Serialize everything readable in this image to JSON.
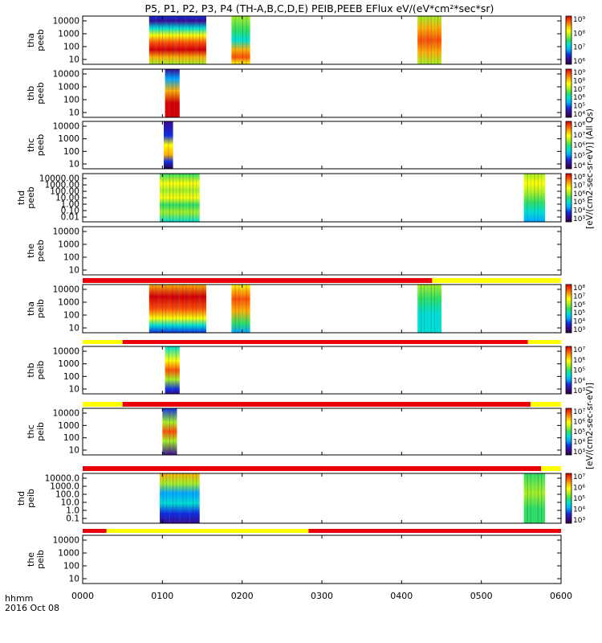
{
  "title": "P5, P1, P2, P3, P4 (TH-A,B,C,D,E) PEIB,PEEB EFlux eV/(eV*cm²*sec*sr)",
  "time_axis": {
    "label_line1": "hhmm",
    "label_line2": "2016 Oct 08",
    "ticks": [
      "0000",
      "0100",
      "0200",
      "0300",
      "0400",
      "0500",
      "0600"
    ],
    "range_minutes": [
      0,
      360
    ]
  },
  "colorbar_labels": {
    "electron": "[eV/(cm2-sec-sr-eV)] (All Qs)",
    "ion": "[eV/(cm2-sec-sr-eV)]"
  },
  "colors": {
    "status_red": "#e8000b",
    "status_yellow": "#ffff00",
    "spectrogram_scale": [
      "#2b0040",
      "#3a0a8f",
      "#1030e0",
      "#00a8ff",
      "#00e0d0",
      "#30e060",
      "#a8f020",
      "#ffff00",
      "#ffb000",
      "#ff5000",
      "#d80000"
    ]
  },
  "chart_data": {
    "type": "heatmap",
    "x_units": "minutes since 0000 UT",
    "panels": [
      {
        "label_line1": "tha",
        "label_line2": "peeb",
        "kind": "electron",
        "yticks": [
          "10",
          "100",
          "1000",
          "10000"
        ],
        "colorbar_ticks": [
          "10⁶",
          "10⁷",
          "10⁸",
          "10⁹"
        ],
        "blocks": [
          {
            "t0": 50,
            "t1": 93,
            "profile": "eA"
          },
          {
            "t0": 112,
            "t1": 126,
            "profile": "eB"
          },
          {
            "t0": 252,
            "t1": 270,
            "profile": "eC"
          }
        ]
      },
      {
        "label_line1": "thb",
        "label_line2": "peeb",
        "kind": "electron",
        "yticks": [
          "10",
          "100",
          "1000",
          "10000"
        ],
        "colorbar_ticks": [
          "10⁴",
          "10⁵",
          "10⁶",
          "10⁷",
          "10⁸",
          "10⁹"
        ],
        "blocks": [
          {
            "t0": 62,
            "t1": 73,
            "profile": "eD"
          }
        ]
      },
      {
        "label_line1": "thc",
        "label_line2": "peeb",
        "kind": "electron",
        "yticks": [
          "10",
          "100",
          "1000",
          "10000"
        ],
        "colorbar_ticks": [
          "10⁴",
          "10⁵",
          "10⁶",
          "10⁷",
          "10⁸"
        ],
        "blocks": [
          {
            "t0": 61,
            "t1": 68,
            "profile": "eE"
          }
        ]
      },
      {
        "label_line1": "thd",
        "label_line2": "peeb",
        "kind": "electron",
        "yticks": [
          "0.01",
          "0.10",
          "1.00",
          "10.00",
          "100.00",
          "1000.00",
          "10000.00"
        ],
        "colorbar_ticks": [
          "10³",
          "10⁴",
          "10⁵",
          "10⁶",
          "10⁷",
          "10⁸"
        ],
        "blocks": [
          {
            "t0": 58,
            "t1": 88,
            "profile": "eF"
          },
          {
            "t0": 332,
            "t1": 348,
            "profile": "eG"
          }
        ]
      },
      {
        "label_line1": "the",
        "label_line2": "peeb",
        "kind": "electron",
        "yticks": [
          "10",
          "100",
          "1000",
          "10000"
        ],
        "colorbar_ticks": [],
        "blocks": []
      },
      {
        "label_line1": "tha",
        "label_line2": "peib",
        "kind": "ion",
        "status_bar": [
          {
            "t0": 0,
            "t1": 263,
            "state": "red"
          },
          {
            "t0": 263,
            "t1": 360,
            "state": "yellow"
          }
        ],
        "yticks": [
          "10",
          "100",
          "1000",
          "10000"
        ],
        "colorbar_ticks": [
          "10³",
          "10⁴",
          "10⁵",
          "10⁶",
          "10⁷",
          "10⁸"
        ],
        "blocks": [
          {
            "t0": 50,
            "t1": 93,
            "profile": "iA"
          },
          {
            "t0": 112,
            "t1": 126,
            "profile": "iB"
          },
          {
            "t0": 252,
            "t1": 270,
            "profile": "iC"
          }
        ]
      },
      {
        "label_line1": "thb",
        "label_line2": "peib",
        "kind": "ion",
        "status_bar": [
          {
            "t0": 0,
            "t1": 30,
            "state": "yellow"
          },
          {
            "t0": 30,
            "t1": 335,
            "state": "red"
          },
          {
            "t0": 335,
            "t1": 360,
            "state": "yellow"
          }
        ],
        "yticks": [
          "10",
          "100",
          "1000",
          "10000"
        ],
        "colorbar_ticks": [
          "10³",
          "10⁴",
          "10⁵",
          "10⁶",
          "10⁷"
        ],
        "blocks": [
          {
            "t0": 62,
            "t1": 73,
            "profile": "iD"
          }
        ]
      },
      {
        "label_line1": "thc",
        "label_line2": "peib",
        "kind": "ion",
        "status_bar": [
          {
            "t0": 0,
            "t1": 30,
            "state": "yellow"
          },
          {
            "t0": 30,
            "t1": 337,
            "state": "red"
          },
          {
            "t0": 337,
            "t1": 360,
            "state": "yellow"
          }
        ],
        "yticks": [
          "10",
          "100",
          "1000",
          "10000"
        ],
        "colorbar_ticks": [
          "10³",
          "10⁴",
          "10⁵",
          "10⁶",
          "10⁷"
        ],
        "blocks": [
          {
            "t0": 60,
            "t1": 71,
            "profile": "iE"
          }
        ]
      },
      {
        "label_line1": "thd",
        "label_line2": "peib",
        "kind": "ion",
        "status_bar": [
          {
            "t0": 0,
            "t1": 345,
            "state": "red"
          },
          {
            "t0": 345,
            "t1": 360,
            "state": "yellow"
          }
        ],
        "yticks": [
          "0.1",
          "1.0",
          "10.0",
          "100.0",
          "1000.0",
          "10000.0"
        ],
        "colorbar_ticks": [
          "10³",
          "10⁴",
          "10⁵",
          "10⁶",
          "10⁷"
        ],
        "blocks": [
          {
            "t0": 58,
            "t1": 88,
            "profile": "iF"
          },
          {
            "t0": 332,
            "t1": 348,
            "profile": "iG"
          }
        ]
      },
      {
        "label_line1": "the",
        "label_line2": "peib",
        "kind": "ion",
        "status_bar": [
          {
            "t0": 0,
            "t1": 18,
            "state": "red"
          },
          {
            "t0": 18,
            "t1": 170,
            "state": "yellow"
          },
          {
            "t0": 170,
            "t1": 360,
            "state": "red"
          }
        ],
        "yticks": [
          "10",
          "100",
          "1000",
          "10000"
        ],
        "colorbar_ticks": [],
        "blocks": []
      }
    ]
  }
}
